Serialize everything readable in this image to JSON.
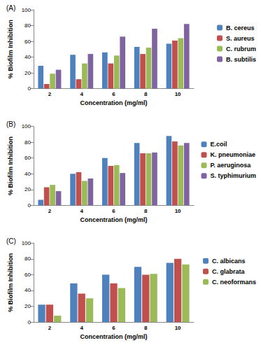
{
  "chart_data": [
    {
      "type": "bar",
      "title": "(A)",
      "x_label": "Concentration (mg/ml)",
      "y_label": "% Biofilm Inhibition",
      "categories": [
        "2",
        "4",
        "6",
        "8",
        "10"
      ],
      "series": [
        {
          "name": "B. cereus",
          "color": "#4f81bd",
          "values": [
            29,
            43,
            46,
            53,
            57
          ]
        },
        {
          "name": "S. aureus",
          "color": "#c0504d",
          "values": [
            6,
            12,
            32,
            44,
            61
          ]
        },
        {
          "name": "C. rubrum",
          "color": "#9bbb59",
          "values": [
            19,
            32,
            42,
            52,
            64
          ]
        },
        {
          "name": "B. subtilis",
          "color": "#8064a2",
          "values": [
            24,
            44,
            66,
            76,
            82
          ]
        }
      ],
      "ylim": [
        0,
        100
      ],
      "yticks": [
        0,
        20,
        40,
        60,
        80,
        100
      ],
      "grid": false,
      "legend": "right"
    },
    {
      "type": "bar",
      "title": "(B)",
      "x_label": "Concentration (mg/ml)",
      "y_label": "% Biofilm Inhibition",
      "categories": [
        "2",
        "4",
        "6",
        "8",
        "10"
      ],
      "series": [
        {
          "name": "E.coil",
          "color": "#4f81bd",
          "values": [
            7,
            40,
            60,
            79,
            88
          ]
        },
        {
          "name": "K. pneumoniae",
          "color": "#c0504d",
          "values": [
            23,
            42,
            50,
            66,
            81
          ]
        },
        {
          "name": "P. aeruginosa",
          "color": "#9bbb59",
          "values": [
            26,
            31,
            51,
            66,
            76
          ]
        },
        {
          "name": "S. typhimurium",
          "color": "#8064a2",
          "values": [
            18,
            34,
            41,
            67,
            79
          ]
        }
      ],
      "ylim": [
        0,
        100
      ],
      "yticks": [
        0,
        20,
        40,
        60,
        80,
        100
      ],
      "grid": false,
      "legend": "right"
    },
    {
      "type": "bar",
      "title": "(C)",
      "x_label": "Concentration (mg/ml)",
      "y_label": "% Biofilm Inhibition",
      "categories": [
        "2",
        "4",
        "6",
        "8",
        "10"
      ],
      "series": [
        {
          "name": "C. albicans",
          "color": "#4f81bd",
          "values": [
            22,
            49,
            60,
            70,
            75
          ]
        },
        {
          "name": "C. glabrata",
          "color": "#c0504d",
          "values": [
            22,
            36,
            49,
            60,
            80
          ]
        },
        {
          "name": "C. neoformans",
          "color": "#9bbb59",
          "values": [
            8,
            30,
            43,
            61,
            73
          ]
        }
      ],
      "ylim": [
        0,
        100
      ],
      "yticks": [
        0,
        20,
        40,
        60,
        80,
        100
      ],
      "grid": false,
      "legend": "right"
    }
  ]
}
